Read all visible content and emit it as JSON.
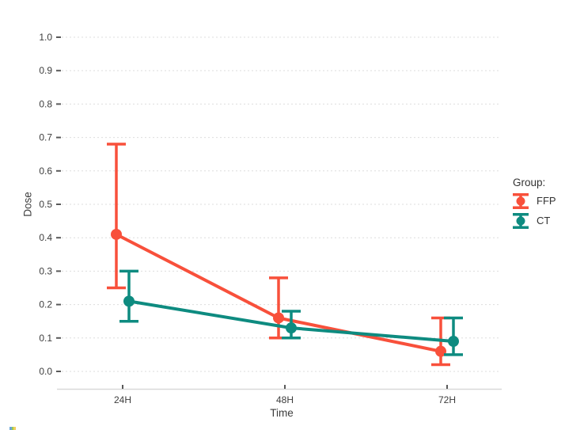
{
  "chart_data": {
    "type": "line",
    "subtype": "pointrange-with-errorbars",
    "title": "",
    "xlabel": "Time",
    "ylabel": "Dose",
    "categories": [
      "24H",
      "48H",
      "72H"
    ],
    "yticks": [
      "0.0",
      "0.1",
      "0.2",
      "0.3",
      "0.4",
      "0.5",
      "0.6",
      "0.7",
      "0.8",
      "0.9",
      "1.0"
    ],
    "ylim": [
      0,
      1
    ],
    "grid": "dashed-horizontal",
    "legend_title": "Group:",
    "legend_position": "right",
    "series": [
      {
        "name": "FFP",
        "color": "#F8503B",
        "values": [
          0.41,
          0.16,
          0.06
        ],
        "ci_low": [
          0.25,
          0.1,
          0.02
        ],
        "ci_high": [
          0.68,
          0.28,
          0.16
        ]
      },
      {
        "name": "CT",
        "color": "#0E8B80",
        "values": [
          0.21,
          0.13,
          0.09
        ],
        "ci_low": [
          0.15,
          0.1,
          0.05
        ],
        "ci_high": [
          0.3,
          0.18,
          0.16
        ]
      }
    ]
  },
  "colors": {
    "grid": "#dddddd",
    "axis_line": "#d9d9d9",
    "tick": "#595959",
    "text": "#3d3d3d"
  }
}
